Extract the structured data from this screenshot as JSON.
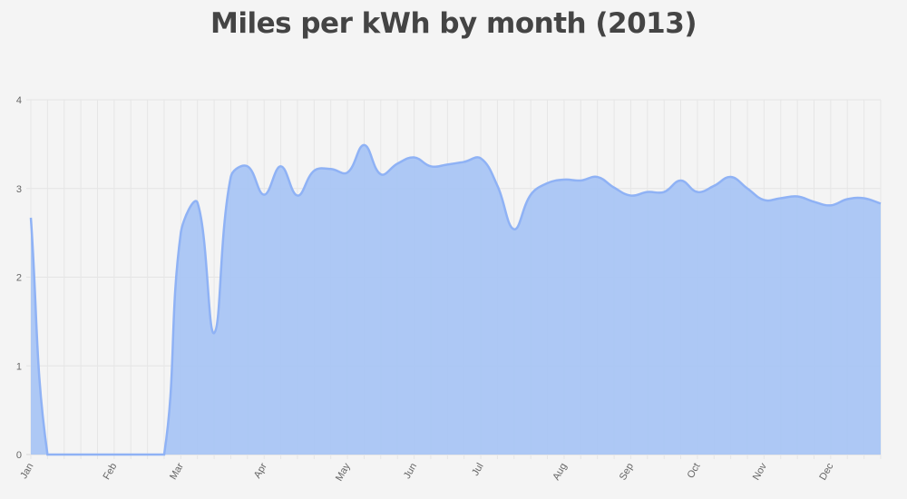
{
  "title": "Miles per kWh by month (2013)",
  "chart_data": {
    "type": "area",
    "title": "Miles per kWh by month (2013)",
    "xlabel": "",
    "ylabel": "",
    "ylim": [
      0,
      4
    ],
    "yticks": [
      "0",
      "1",
      "2",
      "3",
      "4"
    ],
    "grid": true,
    "categories": [
      "Jan",
      "",
      "",
      "",
      "",
      "Feb",
      "",
      "",
      "",
      "Mar",
      "",
      "",
      "",
      "",
      "Apr",
      "",
      "",
      "",
      "",
      "May",
      "",
      "",
      "",
      "Jun",
      "",
      "",
      "",
      "Jul",
      "",
      "",
      "",
      "",
      "Aug",
      "",
      "",
      "",
      "Sep",
      "",
      "",
      "",
      "Oct",
      "",
      "",
      "",
      "Nov",
      "",
      "",
      "",
      "Dec",
      "",
      "",
      ""
    ],
    "series": [
      {
        "name": "Miles per kWh",
        "color": "#8fb2f5",
        "fill": "#a9c5f4",
        "values": [
          2.67,
          0,
          0,
          0,
          0,
          0,
          0,
          0,
          0,
          2.5,
          2.84,
          1.37,
          3.13,
          3.25,
          2.93,
          3.25,
          2.92,
          3.2,
          3.22,
          3.18,
          3.49,
          3.16,
          3.28,
          3.35,
          3.25,
          3.27,
          3.3,
          3.34,
          3.03,
          2.54,
          2.93,
          3.06,
          3.1,
          3.09,
          3.13,
          3.01,
          2.92,
          2.96,
          2.96,
          3.09,
          2.96,
          3.03,
          3.13,
          3.0,
          2.87,
          2.89,
          2.91,
          2.85,
          2.81,
          2.88,
          2.89,
          2.83
        ]
      }
    ]
  }
}
